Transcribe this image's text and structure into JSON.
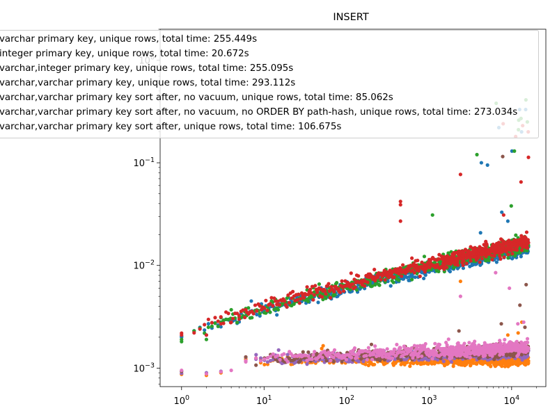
{
  "chart_data": {
    "type": "scatter",
    "title": "INSERT",
    "xlabel": "",
    "ylabel": "",
    "xscale": "log",
    "yscale": "log",
    "xlim": [
      0.55,
      26000
    ],
    "ylim": [
      0.00066,
      2.0
    ],
    "grid": false,
    "legend_placement": "upper-left",
    "x_ticks": [
      {
        "value": 1,
        "base": "10",
        "exp": "0"
      },
      {
        "value": 10,
        "base": "10",
        "exp": "1"
      },
      {
        "value": 100,
        "base": "10",
        "exp": "2"
      },
      {
        "value": 1000,
        "base": "10",
        "exp": "3"
      },
      {
        "value": 10000,
        "base": "10",
        "exp": "4"
      }
    ],
    "y_ticks": [
      {
        "value": 0.001,
        "base": "10",
        "exp": "−3"
      },
      {
        "value": 0.01,
        "base": "10",
        "exp": "−2"
      },
      {
        "value": 0.1,
        "base": "10",
        "exp": "−1"
      },
      {
        "value": 1,
        "base": "10",
        "exp": "0"
      }
    ],
    "series": [
      {
        "name": "varchar primary key, unique rows, total time: 255.449s",
        "color": "#1f77b4",
        "band": {
          "x_start": 1,
          "x_end": 16000,
          "y_start": 0.0019,
          "y_end": 0.015,
          "spread": 0.06
        },
        "points": [
          [
            1,
            0.002
          ],
          [
            2,
            0.0021
          ],
          [
            3,
            0.0028
          ],
          [
            4,
            0.0029
          ],
          [
            5,
            0.003
          ],
          [
            6,
            0.0036
          ],
          [
            7,
            0.0045
          ],
          [
            4300,
            0.1
          ],
          [
            5100,
            0.095
          ],
          [
            7000,
            0.22
          ],
          [
            7600,
            0.033
          ],
          [
            10100,
            0.13
          ],
          [
            12500,
            0.33
          ],
          [
            14800,
            0.33
          ],
          [
            13200,
            0.2
          ],
          [
            4200,
            0.0208
          ],
          [
            9000,
            0.027
          ]
        ]
      },
      {
        "name": "integer primary key, unique rows, total time: 20.672s",
        "color": "#ff7f0e",
        "band": {
          "x_start": 6,
          "x_end": 16000,
          "y_start": 0.00118,
          "y_end": 0.0012,
          "spread": 0.05
        },
        "points": [
          [
            1,
            0.00087
          ],
          [
            2,
            0.00085
          ],
          [
            3,
            0.0009
          ],
          [
            50,
            0.00155
          ],
          [
            52,
            0.00165
          ],
          [
            2400,
            0.007
          ],
          [
            13300,
            0.0028
          ],
          [
            12000,
            0.0022
          ],
          [
            9000,
            0.0021
          ]
        ]
      },
      {
        "name": "varchar,integer primary key, unique rows, total time: 255.095s",
        "color": "#2ca02c",
        "band": {
          "x_start": 1,
          "x_end": 16000,
          "y_start": 0.0019,
          "y_end": 0.0165,
          "spread": 0.07
        },
        "points": [
          [
            1,
            0.0019
          ],
          [
            2,
            0.0019
          ],
          [
            3,
            0.0031
          ],
          [
            4,
            0.0037
          ],
          [
            6,
            0.0038
          ],
          [
            3800,
            0.12
          ],
          [
            6500,
            0.38
          ],
          [
            10800,
            0.13
          ],
          [
            12200,
            0.26
          ],
          [
            13000,
            0.27
          ],
          [
            14900,
            0.41
          ],
          [
            12100,
            0.21
          ],
          [
            1100,
            0.031
          ],
          [
            15500,
            0.25
          ],
          [
            9900,
            0.038
          ]
        ]
      },
      {
        "name": "varchar,varchar primary key, unique rows, total time: 293.112s",
        "color": "#d62728",
        "band": {
          "x_start": 1,
          "x_end": 16000,
          "y_start": 0.002,
          "y_end": 0.017,
          "spread": 0.07
        },
        "points": [
          [
            1,
            0.0021
          ],
          [
            2,
            0.0021
          ],
          [
            3,
            0.0027
          ],
          [
            4,
            0.0028
          ],
          [
            5,
            0.003
          ],
          [
            6,
            0.0037
          ],
          [
            450,
            0.042
          ],
          [
            450,
            0.039
          ],
          [
            450,
            0.027
          ],
          [
            2400,
            0.077
          ],
          [
            7900,
            0.24
          ],
          [
            11200,
            0.18
          ],
          [
            13600,
            0.23
          ],
          [
            15900,
            0.2
          ],
          [
            16000,
            0.113
          ],
          [
            8000,
            0.031
          ],
          [
            13000,
            0.065
          ]
        ]
      },
      {
        "name": "varchar,varchar primary key sort after, no vacuum, unique rows, total time: 85.062s",
        "color": "#9467bd",
        "band": {
          "x_start": 6,
          "x_end": 16000,
          "y_start": 0.00118,
          "y_end": 0.0014,
          "spread": 0.05
        },
        "points": [
          [
            1,
            0.00089
          ],
          [
            2,
            0.0009
          ],
          [
            3,
            0.00093
          ],
          [
            6,
            0.00128
          ],
          [
            8,
            0.00135
          ],
          [
            15,
            0.0015
          ]
        ]
      },
      {
        "name": "varchar,varchar primary key sort after, no vacuum, no ORDER BY path-hash, unique rows, total time: 273.034s",
        "color": "#8c564b",
        "band": {
          "x_start": 6,
          "x_end": 16000,
          "y_start": 0.00118,
          "y_end": 0.0015,
          "spread": 0.05
        },
        "points": [
          [
            7800,
            0.115
          ],
          [
            2300,
            0.0023
          ],
          [
            7500,
            0.0027
          ],
          [
            12600,
            0.0041
          ],
          [
            15000,
            0.0065
          ],
          [
            14500,
            0.0025
          ],
          [
            1,
            0.00093
          ],
          [
            200,
            0.0017
          ]
        ]
      },
      {
        "name": "varchar,varchar primary key sort after, unique rows, total time: 106.675s",
        "color": "#e377c2",
        "band": {
          "x_start": 6,
          "x_end": 16000,
          "y_start": 0.0012,
          "y_end": 0.0016,
          "spread": 0.06
        },
        "points": [
          [
            1,
            0.00095
          ],
          [
            2,
            0.00088
          ],
          [
            3,
            0.00092
          ],
          [
            4,
            0.00095
          ],
          [
            6,
            0.00115
          ],
          [
            2400,
            0.005
          ],
          [
            6400,
            0.0085
          ],
          [
            9400,
            0.006
          ],
          [
            11900,
            0.0027
          ],
          [
            14000,
            0.0028
          ]
        ]
      }
    ]
  }
}
